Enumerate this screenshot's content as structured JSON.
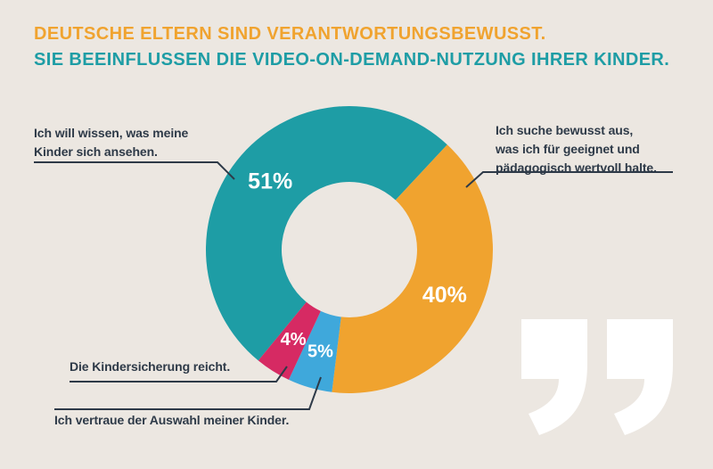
{
  "title": {
    "line1": "DEUTSCHE ELTERN SIND VERANTWORTUNGSBEWUSST.",
    "line2": "SIE BEEINFLUSSEN DIE VIDEO-ON-DEMAND-NUTZUNG IHRER KINDER."
  },
  "chart_data": {
    "type": "pie",
    "subtype": "donut",
    "unit": "percent",
    "total": 100,
    "start_angle_deg": -140.6,
    "clockwise": true,
    "legend_position": "callouts",
    "segments": [
      {
        "label": "Ich will wissen, was meine Kinder sich ansehen.",
        "value": 51,
        "pct_label": "51%",
        "color": "#1E9DA5"
      },
      {
        "label": "Ich suche bewusst aus, was ich für geeignet und pädagogisch wertvoll halte.",
        "value": 40,
        "pct_label": "40%",
        "color": "#F0A32F"
      },
      {
        "label": "Ich vertraue der Auswahl meiner Kinder.",
        "value": 5,
        "pct_label": "5%",
        "color": "#3FA8DB"
      },
      {
        "label": "Die Kindersicherung reicht.",
        "value": 4,
        "pct_label": "4%",
        "color": "#D62A63"
      }
    ]
  },
  "callouts": {
    "watch": {
      "text": "Ich will wissen, was meine\nKinder sich ansehen."
    },
    "curate": {
      "text": "Ich suche bewusst aus,\nwas ich für geeignet und\npädagogisch wertvoll halte."
    },
    "lock": {
      "text": "Die Kindersicherung reicht."
    },
    "trust": {
      "text": "Ich vertraue der Auswahl meiner Kinder."
    }
  },
  "colors": {
    "background": "#ECE7E1",
    "title_orange": "#F0A32F",
    "title_teal": "#1E9DA5",
    "text_navy": "#2E3A48",
    "quote_white": "#FFFFFF"
  },
  "decor": {
    "quote_mark": "”"
  }
}
